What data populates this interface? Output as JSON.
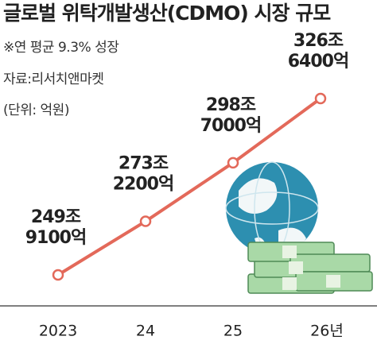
{
  "chart_data": {
    "type": "line",
    "title": "글로벌 위탁개발생산(CDMO) 시장 규모",
    "notes": [
      "※연 평균 9.3% 성장",
      "자료:리서치앤마켓",
      "(단위: 억원)"
    ],
    "categories": [
      "2023",
      "24",
      "25",
      "26년"
    ],
    "series": [
      {
        "color": "#e3695a",
        "values": [
          2499100,
          2732200,
          2987000,
          3266400
        ],
        "value_labels": [
          [
            "249조",
            "9100억"
          ],
          [
            "273조",
            "2200억"
          ],
          [
            "298조",
            "7000억"
          ],
          [
            "326조",
            "6400억"
          ]
        ]
      }
    ]
  }
}
